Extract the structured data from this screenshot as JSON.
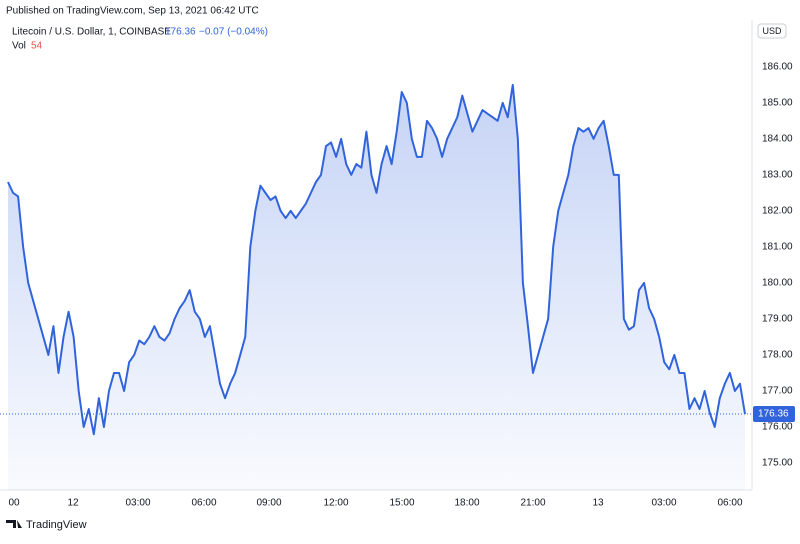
{
  "chart_data": {
    "type": "area",
    "published": "Published on TradingView.com, Sep 13, 2021 06:42 UTC",
    "symbol": "Litecoin / U.S. Dollar, 1, COINBASE",
    "change": "−0.07 (−0.04%)",
    "volume_label": "Vol",
    "volume_value": "54",
    "currency": "USD",
    "brand": "TradingView",
    "color": "#3164dc",
    "x_labels": [
      "00",
      "12",
      "03:00",
      "06:00",
      "09:00",
      "12:00",
      "15:00",
      "18:00",
      "21:00",
      "13",
      "03:00",
      "06:00"
    ],
    "ylim": [
      174.25,
      187.3
    ],
    "yticks": [
      {
        "value": 175,
        "label": "175.00"
      },
      {
        "value": 176,
        "label": "176.00"
      },
      {
        "value": 177,
        "label": "177.00"
      },
      {
        "value": 178,
        "label": "178.00"
      },
      {
        "value": 179,
        "label": "179.00"
      },
      {
        "value": 180,
        "label": "180.00"
      },
      {
        "value": 181,
        "label": "181.00"
      },
      {
        "value": 182,
        "label": "182.00"
      },
      {
        "value": 183,
        "label": "183.00"
      },
      {
        "value": 184,
        "label": "184.00"
      },
      {
        "value": 185,
        "label": "185.00"
      },
      {
        "value": 186,
        "label": "186.00"
      }
    ],
    "values": [
      182.8,
      182.5,
      182.4,
      181,
      180,
      179.5,
      179,
      178.5,
      178,
      178.8,
      177.5,
      178.5,
      179.2,
      178.5,
      177,
      176,
      176.5,
      175.8,
      176.8,
      176,
      177,
      177.5,
      177.5,
      177,
      177.8,
      178,
      178.4,
      178.3,
      178.5,
      178.8,
      178.5,
      178.4,
      178.6,
      179,
      179.3,
      179.5,
      179.8,
      179.2,
      179,
      178.5,
      178.8,
      178,
      177.2,
      176.8,
      177.2,
      177.5,
      178,
      178.5,
      181,
      182,
      182.7,
      182.5,
      182.3,
      182.4,
      182,
      181.8,
      182,
      181.8,
      182,
      182.2,
      182.5,
      182.8,
      183,
      183.8,
      183.9,
      183.5,
      184,
      183.3,
      183,
      183.3,
      183.2,
      184.2,
      183,
      182.5,
      183.3,
      183.8,
      183.3,
      184.2,
      185.3,
      185,
      184,
      183.5,
      183.5,
      184.5,
      184.3,
      184,
      183.5,
      184,
      184.3,
      184.6,
      185.2,
      184.7,
      184.2,
      184.5,
      184.8,
      184.7,
      184.6,
      184.5,
      185,
      184.6,
      185.5,
      184,
      180,
      178.8,
      177.5,
      178,
      178.5,
      179,
      181,
      182,
      182.5,
      183,
      183.8,
      184.3,
      184.2,
      184.3,
      184,
      184.3,
      184.5,
      183.8,
      183,
      183,
      179,
      178.7,
      178.8,
      179.8,
      180,
      179.3,
      179,
      178.5,
      177.8,
      177.6,
      178,
      177.5,
      177.5,
      176.5,
      176.8,
      176.5,
      177,
      176.4,
      176,
      176.8,
      177.2,
      177.5,
      177,
      177.2,
      176.36
    ],
    "value_labels": {
      "last": "176.36"
    }
  }
}
